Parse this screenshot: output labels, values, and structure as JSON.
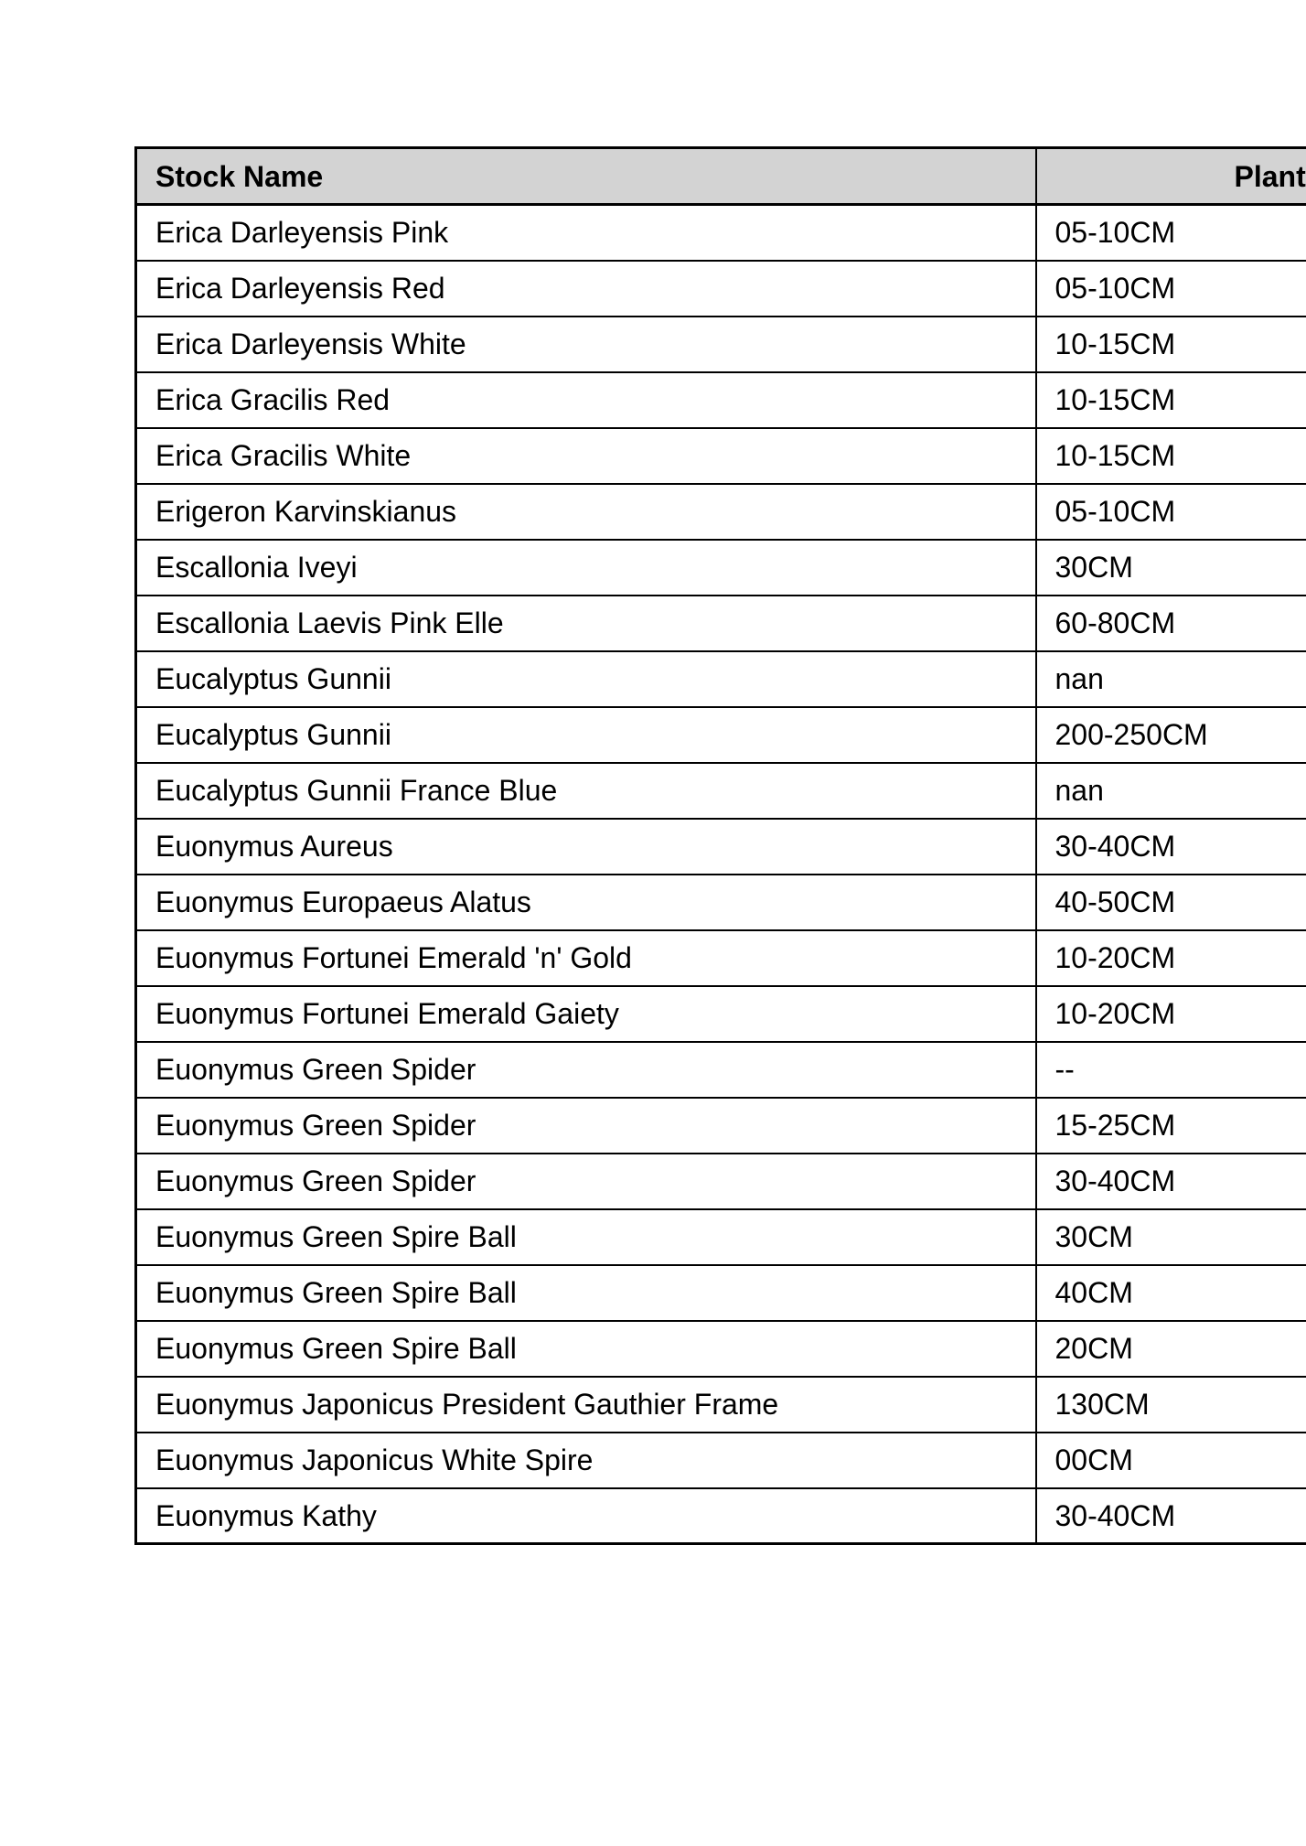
{
  "colors": {
    "header_bg": "#d3d3d3",
    "border": "#000000",
    "text": "#000000",
    "page_bg": "#ffffff"
  },
  "table": {
    "header": {
      "stock_name": "Stock Name",
      "plant_size": "Plant"
    },
    "rows": [
      {
        "stock_name": "Erica Darleyensis Pink",
        "plant_size": "05-10CM"
      },
      {
        "stock_name": "Erica Darleyensis Red",
        "plant_size": "05-10CM"
      },
      {
        "stock_name": "Erica Darleyensis White",
        "plant_size": "10-15CM"
      },
      {
        "stock_name": "Erica Gracilis Red",
        "plant_size": "10-15CM"
      },
      {
        "stock_name": "Erica Gracilis White",
        "plant_size": "10-15CM"
      },
      {
        "stock_name": "Erigeron Karvinskianus",
        "plant_size": "05-10CM"
      },
      {
        "stock_name": "Escallonia Iveyi",
        "plant_size": "30CM"
      },
      {
        "stock_name": "Escallonia Laevis Pink Elle",
        "plant_size": "60-80CM"
      },
      {
        "stock_name": "Eucalyptus Gunnii",
        "plant_size": "nan"
      },
      {
        "stock_name": "Eucalyptus Gunnii",
        "plant_size": "200-250CM"
      },
      {
        "stock_name": "Eucalyptus Gunnii France Blue",
        "plant_size": "nan"
      },
      {
        "stock_name": "Euonymus Aureus",
        "plant_size": "30-40CM"
      },
      {
        "stock_name": "Euonymus Europaeus Alatus",
        "plant_size": "40-50CM"
      },
      {
        "stock_name": "Euonymus Fortunei Emerald 'n' Gold",
        "plant_size": "10-20CM"
      },
      {
        "stock_name": "Euonymus Fortunei Emerald Gaiety",
        "plant_size": "10-20CM"
      },
      {
        "stock_name": "Euonymus Green Spider",
        "plant_size": "--"
      },
      {
        "stock_name": "Euonymus Green Spider",
        "plant_size": "15-25CM"
      },
      {
        "stock_name": "Euonymus Green Spider",
        "plant_size": "30-40CM"
      },
      {
        "stock_name": "Euonymus Green Spire Ball",
        "plant_size": "30CM"
      },
      {
        "stock_name": "Euonymus Green Spire Ball",
        "plant_size": "40CM"
      },
      {
        "stock_name": "Euonymus Green Spire Ball",
        "plant_size": "20CM"
      },
      {
        "stock_name": "Euonymus Japonicus President Gauthier Frame",
        "plant_size": "130CM"
      },
      {
        "stock_name": "Euonymus Japonicus White Spire",
        "plant_size": "00CM"
      },
      {
        "stock_name": "Euonymus Kathy",
        "plant_size": "30-40CM"
      }
    ]
  }
}
